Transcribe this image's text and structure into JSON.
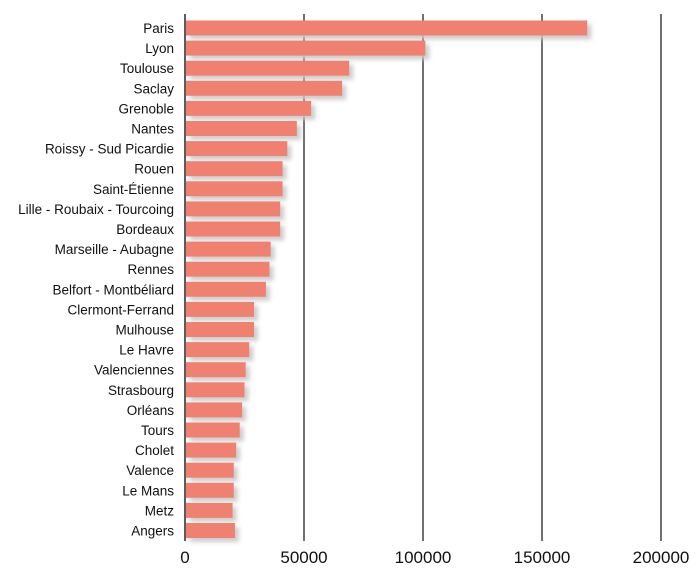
{
  "chart_data": {
    "type": "bar",
    "orientation": "horizontal",
    "title": "",
    "xlabel": "",
    "ylabel": "",
    "xlim": [
      0,
      200000
    ],
    "x_ticks": [
      0,
      50000,
      100000,
      150000,
      200000
    ],
    "x_tick_labels": [
      "0",
      "50000",
      "100000",
      "150000",
      "200000"
    ],
    "grid": "vertical",
    "legend": "none",
    "bar_color": "#f08070",
    "shadow_color": "#c8c8c8",
    "categories": [
      "Paris",
      "Lyon",
      "Toulouse",
      "Saclay",
      "Grenoble",
      "Nantes",
      "Roissy - Sud Picardie",
      "Rouen",
      "Saint-Étienne",
      "Lille - Roubaix - Tourcoing",
      "Bordeaux",
      "Marseille - Aubagne",
      "Rennes",
      "Belfort - Montbéliard",
      "Clermont-Ferrand",
      "Mulhouse",
      "Le Havre",
      "Valenciennes",
      "Strasbourg",
      "Orléans",
      "Tours",
      "Cholet",
      "Valence",
      "Le Mans",
      "Metz",
      "Angers"
    ],
    "values": [
      169000,
      101000,
      69000,
      66000,
      53000,
      47000,
      43000,
      41000,
      41000,
      40000,
      40000,
      36000,
      35500,
      34000,
      29000,
      29000,
      27000,
      25500,
      25000,
      24000,
      23000,
      21500,
      20500,
      20500,
      20000,
      21000
    ]
  }
}
